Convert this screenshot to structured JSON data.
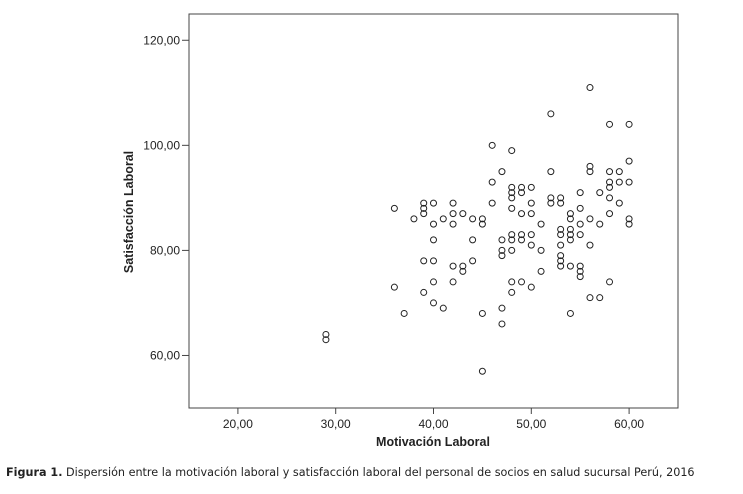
{
  "chart_data": {
    "type": "scatter",
    "xlabel": "Motivación Laboral",
    "ylabel": "Satisfacción Laboral",
    "xlim": [
      15,
      65
    ],
    "ylim": [
      50,
      125
    ],
    "xticks": [
      20,
      30,
      40,
      50,
      60
    ],
    "yticks": [
      60,
      80,
      100,
      120
    ],
    "xtick_labels": [
      "20,00",
      "30,00",
      "40,00",
      "50,00",
      "60,00"
    ],
    "ytick_labels": [
      "60,00",
      "80,00",
      "100,00",
      "120,00"
    ],
    "marker": "open-circle",
    "grid": false,
    "points": [
      [
        29,
        64
      ],
      [
        29,
        63
      ],
      [
        36,
        88
      ],
      [
        36,
        73
      ],
      [
        37,
        68
      ],
      [
        38,
        86
      ],
      [
        39,
        89
      ],
      [
        39,
        88
      ],
      [
        39,
        87
      ],
      [
        39,
        78
      ],
      [
        39,
        72
      ],
      [
        40,
        89
      ],
      [
        40,
        85
      ],
      [
        40,
        82
      ],
      [
        40,
        78
      ],
      [
        40,
        74
      ],
      [
        40,
        70
      ],
      [
        41,
        86
      ],
      [
        41,
        69
      ],
      [
        42,
        89
      ],
      [
        42,
        87
      ],
      [
        42,
        85
      ],
      [
        42,
        77
      ],
      [
        42,
        74
      ],
      [
        43,
        87
      ],
      [
        43,
        77
      ],
      [
        43,
        76
      ],
      [
        44,
        86
      ],
      [
        44,
        82
      ],
      [
        44,
        78
      ],
      [
        45,
        86
      ],
      [
        45,
        85
      ],
      [
        45,
        68
      ],
      [
        45,
        57
      ],
      [
        46,
        100
      ],
      [
        46,
        93
      ],
      [
        46,
        89
      ],
      [
        47,
        95
      ],
      [
        47,
        82
      ],
      [
        47,
        80
      ],
      [
        47,
        79
      ],
      [
        47,
        69
      ],
      [
        47,
        66
      ],
      [
        48,
        99
      ],
      [
        48,
        92
      ],
      [
        48,
        91
      ],
      [
        48,
        90
      ],
      [
        48,
        88
      ],
      [
        48,
        83
      ],
      [
        48,
        82
      ],
      [
        48,
        80
      ],
      [
        48,
        74
      ],
      [
        48,
        72
      ],
      [
        49,
        92
      ],
      [
        49,
        91
      ],
      [
        49,
        87
      ],
      [
        49,
        83
      ],
      [
        49,
        82
      ],
      [
        49,
        74
      ],
      [
        50,
        92
      ],
      [
        50,
        89
      ],
      [
        50,
        87
      ],
      [
        50,
        83
      ],
      [
        50,
        81
      ],
      [
        50,
        73
      ],
      [
        51,
        85
      ],
      [
        51,
        80
      ],
      [
        51,
        76
      ],
      [
        52,
        106
      ],
      [
        52,
        95
      ],
      [
        52,
        90
      ],
      [
        52,
        89
      ],
      [
        53,
        90
      ],
      [
        53,
        89
      ],
      [
        53,
        84
      ],
      [
        53,
        83
      ],
      [
        53,
        81
      ],
      [
        53,
        79
      ],
      [
        53,
        78
      ],
      [
        53,
        77
      ],
      [
        54,
        87
      ],
      [
        54,
        86
      ],
      [
        54,
        84
      ],
      [
        54,
        83
      ],
      [
        54,
        82
      ],
      [
        54,
        77
      ],
      [
        54,
        68
      ],
      [
        55,
        91
      ],
      [
        55,
        88
      ],
      [
        55,
        85
      ],
      [
        55,
        83
      ],
      [
        55,
        77
      ],
      [
        55,
        76
      ],
      [
        55,
        75
      ],
      [
        56,
        111
      ],
      [
        56,
        96
      ],
      [
        56,
        95
      ],
      [
        56,
        86
      ],
      [
        56,
        81
      ],
      [
        56,
        71
      ],
      [
        57,
        91
      ],
      [
        57,
        85
      ],
      [
        57,
        71
      ],
      [
        58,
        104
      ],
      [
        58,
        95
      ],
      [
        58,
        93
      ],
      [
        58,
        92
      ],
      [
        58,
        90
      ],
      [
        58,
        87
      ],
      [
        58,
        74
      ],
      [
        59,
        95
      ],
      [
        59,
        93
      ],
      [
        59,
        89
      ],
      [
        60,
        104
      ],
      [
        60,
        97
      ],
      [
        60,
        93
      ],
      [
        60,
        86
      ],
      [
        60,
        85
      ]
    ]
  },
  "caption": {
    "label": "Figura 1.",
    "text": " Dispersión entre la motivación laboral y satisfacción laboral del personal de socios en salud sucursal Perú, 2016"
  }
}
